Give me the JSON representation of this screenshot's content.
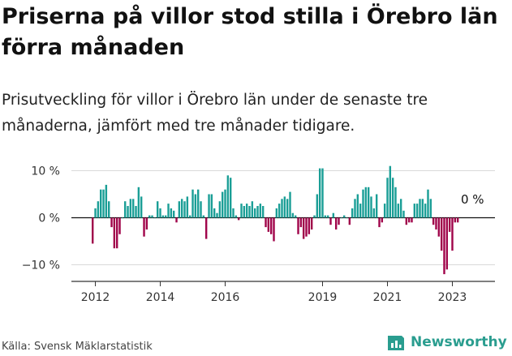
{
  "title": "Priserna på villor stod stilla i Örebro län förra månaden",
  "subtitle": "Prisutveckling för villor i Örebro län under de senaste tre månaderna, jämfört med tre månader tidigare.",
  "source": "Källa: Svensk Mäklarstatistik",
  "brand": {
    "name": "Newsworthy",
    "icon": "newsworthy-logo-icon"
  },
  "colors": {
    "positive": "#1a9e96",
    "negative": "#a0044a",
    "grid": "#d9d9d9",
    "axis": "#333333"
  },
  "chart_data": {
    "type": "bar",
    "x_start": "2011-12",
    "x_end": "2023-06",
    "annotation": "0 %",
    "xticks": [
      "2012",
      "2014",
      "2016",
      "2019",
      "2021",
      "2023"
    ],
    "yticks": [
      "10 %",
      "0 %",
      "−10 %"
    ],
    "ylim": [
      -14,
      12
    ],
    "values": [
      -5.5,
      2,
      3.5,
      6,
      6,
      7,
      3.5,
      -2,
      -6.5,
      -6.5,
      -3.5,
      0,
      3.5,
      2.5,
      4,
      4,
      2.5,
      6.5,
      4.5,
      -4,
      -2.5,
      0.5,
      0.5,
      0,
      3.5,
      2,
      0.5,
      0.5,
      3,
      2,
      1.5,
      -1,
      3.5,
      4,
      3.5,
      4.5,
      0.5,
      6,
      5,
      6,
      3.5,
      0.5,
      -4.5,
      5,
      5,
      2,
      1,
      3.5,
      5.5,
      6,
      9,
      8.5,
      2,
      0.5,
      -0.5,
      3,
      2.5,
      3,
      2.5,
      3.5,
      2,
      2.5,
      3,
      2.5,
      -2,
      -3,
      -3.5,
      -5,
      2,
      3,
      4,
      4.5,
      4,
      5.5,
      1,
      0.5,
      -3.5,
      -2,
      -4.5,
      -4,
      -3.5,
      -2.5,
      0.5,
      5,
      10.5,
      10.5,
      0.5,
      0.5,
      -1.5,
      1,
      -2.5,
      -1.5,
      0,
      0.5,
      0,
      -1.5,
      2,
      4,
      5,
      3,
      6,
      6.5,
      6.5,
      4.5,
      2,
      5,
      -2,
      -1,
      3,
      8.5,
      11,
      8.5,
      6.5,
      3,
      4,
      1.5,
      -1.5,
      -1,
      -1,
      3,
      3,
      4,
      4,
      3,
      6,
      4,
      -1.5,
      -2.5,
      -4,
      -7,
      -12,
      -11,
      -3,
      -7,
      -1,
      -1
    ]
  }
}
